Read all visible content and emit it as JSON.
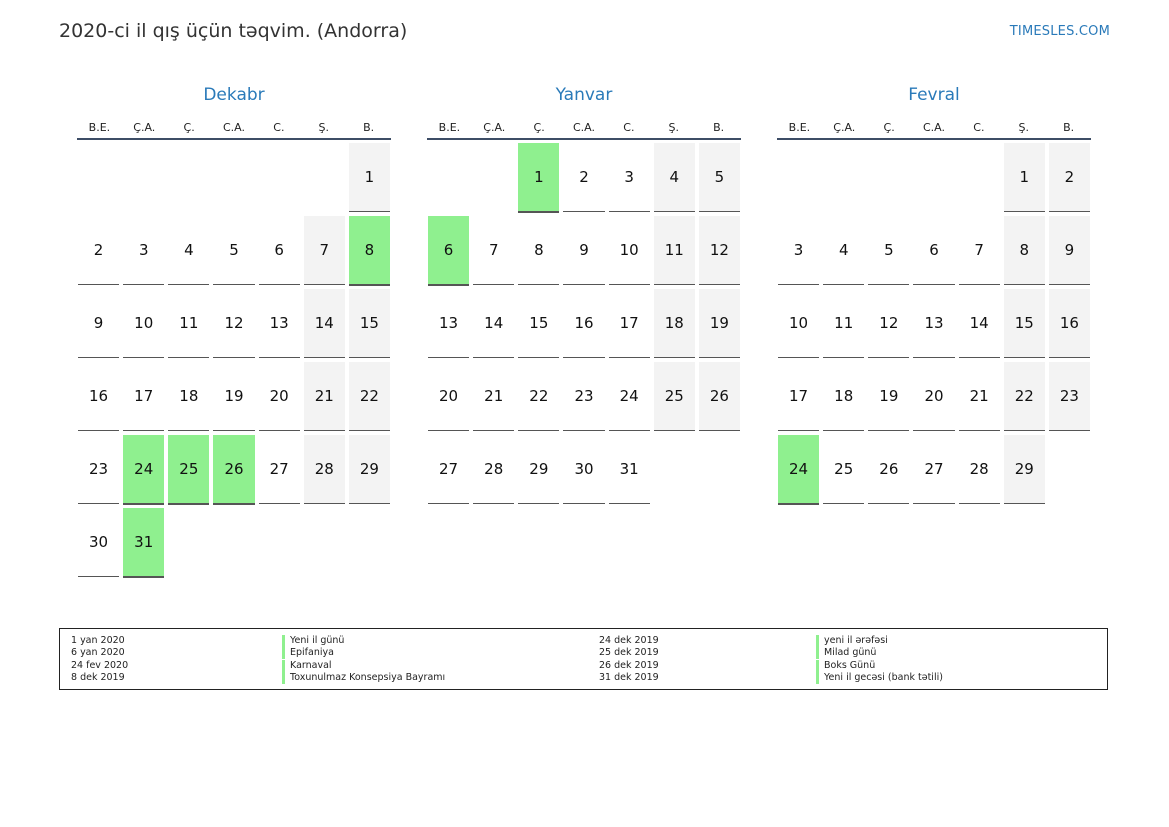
{
  "header": {
    "title": "2020-ci il qış üçün təqvim. (Andorra)",
    "brand": "TIMESLES.COM"
  },
  "weekday_labels": [
    "B.E.",
    "Ç.A.",
    "Ç.",
    "C.A.",
    "C.",
    "Ş.",
    "B."
  ],
  "months": [
    {
      "name": "Dekabr",
      "start_offset": 6,
      "days": 31,
      "holidays": [
        8,
        24,
        25,
        26,
        31
      ]
    },
    {
      "name": "Yanvar",
      "start_offset": 2,
      "days": 31,
      "holidays": [
        1,
        6
      ]
    },
    {
      "name": "Fevral",
      "start_offset": 5,
      "days": 29,
      "holidays": [
        24
      ]
    }
  ],
  "holiday_color": "#8ff08f",
  "weekend_color": "#f3f3f3",
  "legend": [
    {
      "date": "1 yan 2020",
      "name": "Yeni il günü"
    },
    {
      "date": "6 yan 2020",
      "name": "Epifaniya"
    },
    {
      "date": "24 fev 2020",
      "name": "Karnaval"
    },
    {
      "date": "8 dek 2019",
      "name": "Toxunulmaz Konsepsiya Bayramı"
    },
    {
      "date": "24 dek 2019",
      "name": "yeni il ərəfəsi"
    },
    {
      "date": "25 dek 2019",
      "name": "Milad günü"
    },
    {
      "date": "26 dek 2019",
      "name": "Boks Günü"
    },
    {
      "date": "31 dek 2019",
      "name": "Yeni il gecəsi (bank tətili)"
    }
  ]
}
